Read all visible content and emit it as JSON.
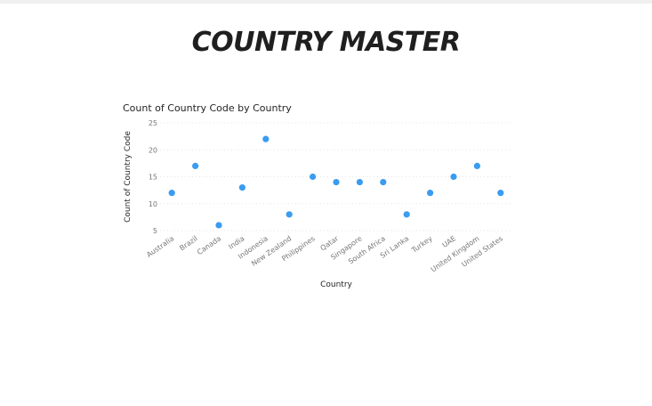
{
  "page": {
    "title": "COUNTRY MASTER"
  },
  "colors": {
    "point": "#3a9cf0",
    "gridline": "#e6e6e6",
    "tick_text": "#777777"
  },
  "chart_data": {
    "type": "scatter",
    "title": "Count of Country Code by Country",
    "xlabel": "Country",
    "ylabel": "Count of Country Code",
    "ylim": [
      5,
      25
    ],
    "yticks": [
      5,
      10,
      15,
      20,
      25
    ],
    "grid": true,
    "legend": "none",
    "categories": [
      "Australia",
      "Brazil",
      "Canada",
      "India",
      "Indonesia",
      "New Zealand",
      "Philippines",
      "Qatar",
      "Singapore",
      "South Africa",
      "Sri Lanka",
      "Turkey",
      "UAE",
      "United Kingdom",
      "United States"
    ],
    "series": [
      {
        "values": [
          12,
          17,
          6,
          13,
          22,
          8,
          15,
          14,
          14,
          14,
          8,
          12,
          15,
          17,
          12
        ]
      }
    ]
  }
}
